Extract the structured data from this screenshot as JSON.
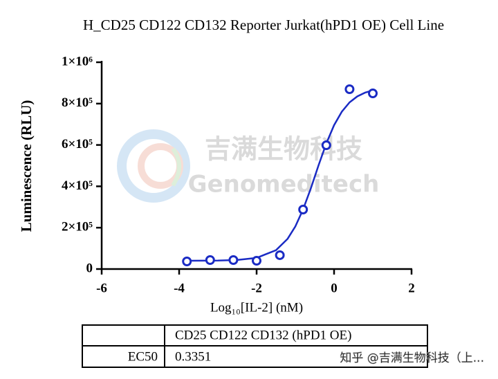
{
  "chart_data": {
    "type": "scatter",
    "title": "H_CD25 CD122 CD132 Reporter Jurkat(hPD1 OE) Cell Line",
    "x_label": "Log₁₀[IL-2] (nM)",
    "y_label": "Luminescence (RLU)",
    "color": "#1a2bc4",
    "x": [
      -3.8,
      -3.2,
      -2.6,
      -2.0,
      -1.4,
      -0.8,
      -0.2,
      0.4,
      1.0
    ],
    "values": [
      36800,
      43500,
      43500,
      40000,
      67000,
      287600,
      598700,
      869600,
      849500
    ],
    "fit": {
      "x": [
        -3.8,
        -3.0,
        -2.5,
        -2.0,
        -1.5,
        -1.2,
        -1.0,
        -0.8,
        -0.6,
        -0.4,
        -0.2,
        0.0,
        0.2,
        0.4,
        0.6,
        0.8,
        1.0
      ],
      "values": [
        40100,
        41000,
        43750,
        54000,
        91000,
        146000,
        206000,
        288500,
        390000,
        502000,
        607600,
        695700,
        761000,
        806000,
        835000,
        853000,
        864000
      ]
    },
    "xlim": [
      -6,
      2
    ],
    "xticks": [
      -6,
      -4,
      -2,
      0,
      2
    ],
    "ylim": [
      0,
      1000000
    ],
    "yticks": [
      0,
      {
        "value": 200000,
        "label": "2×10⁵"
      },
      {
        "value": 400000,
        "label": "4×10⁵"
      },
      {
        "value": 600000,
        "label": "6×10⁵"
      },
      {
        "value": 800000,
        "label": "8×10⁵"
      },
      {
        "value": 1000000,
        "label": "1×10⁶"
      }
    ]
  },
  "table": {
    "columns": [
      "CD25 CD122 CD132 (hPD1 OE)"
    ],
    "rows": [
      [
        "EC50",
        0.3351
      ]
    ]
  },
  "watermark": {
    "cn": "吉满生物科技",
    "en": "Genomeditech",
    "source": "知乎 @吉满生物科技（上..."
  }
}
